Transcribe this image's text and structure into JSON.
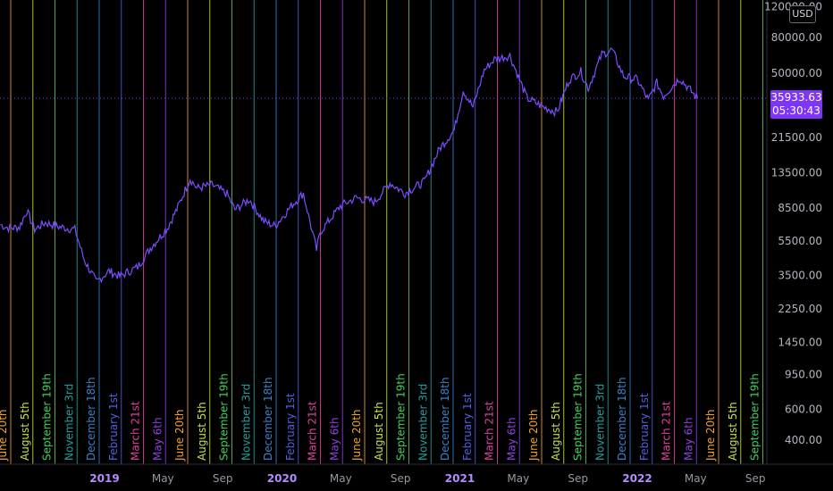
{
  "currency": "USD",
  "last_price": {
    "value": "35933.63",
    "countdown": "05:30:43"
  },
  "chart_data": {
    "type": "line",
    "yscale": "log",
    "ylim": [
      370,
      120000
    ],
    "price_ticks": [
      "120000.00",
      "80000.00",
      "50000.00",
      "21500.00",
      "13500.00",
      "8500.00",
      "5500.00",
      "3500.00",
      "2250.00",
      "1450.00",
      "950.00",
      "600.00",
      "400.00"
    ],
    "time_ticks": [
      {
        "label": "2019",
        "year": true
      },
      {
        "label": "May",
        "year": false
      },
      {
        "label": "Sep",
        "year": false
      },
      {
        "label": "2020",
        "year": true
      },
      {
        "label": "May",
        "year": false
      },
      {
        "label": "Sep",
        "year": false
      },
      {
        "label": "2021",
        "year": true
      },
      {
        "label": "May",
        "year": false
      },
      {
        "label": "Sep",
        "year": false
      },
      {
        "label": "2022",
        "year": true
      },
      {
        "label": "May",
        "year": false
      },
      {
        "label": "Sep",
        "year": false
      }
    ],
    "cycle_lines": [
      {
        "label": "June 20th",
        "color": "#f0a030"
      },
      {
        "label": "August 5th",
        "color": "#c8e040"
      },
      {
        "label": "September 19th",
        "color": "#40d060"
      },
      {
        "label": "November 3rd",
        "color": "#20a0a0"
      },
      {
        "label": "December 18th",
        "color": "#3a80c8"
      },
      {
        "label": "February 1st",
        "color": "#5060e0"
      },
      {
        "label": "March 21st",
        "color": "#e040a0"
      },
      {
        "label": "May 6th",
        "color": "#9040e0"
      }
    ],
    "cycle_labels_shown": [
      "June 20th",
      "August 5th",
      "September 19th",
      "November 3rd",
      "December 18th",
      "February 1st",
      "March 21st",
      "May 6th",
      "June 20th",
      "August 5th",
      "September 19th",
      "November 3rd",
      "December 18th",
      "February 1st",
      "March 21st",
      "May 6th",
      "June 20th",
      "August 5th",
      "September 19th",
      "November 3rd",
      "December 18th",
      "February 1st",
      "March 21st",
      "May 6th",
      "June 20th",
      "August 5th",
      "September 19th",
      "November 3rd",
      "December 18th",
      "February 1st",
      "March 21st",
      "May 6th",
      "June 20th",
      "August 5th",
      "September 19th"
    ],
    "series": [
      {
        "color": "#7c4dff",
        "points": [
          [
            "2018-06-01",
            6800
          ],
          [
            "2018-06-20",
            6500
          ],
          [
            "2018-07-10",
            6600
          ],
          [
            "2018-07-25",
            8200
          ],
          [
            "2018-08-10",
            6400
          ],
          [
            "2018-09-01",
            7000
          ],
          [
            "2018-10-01",
            6600
          ],
          [
            "2018-11-01",
            6400
          ],
          [
            "2018-11-20",
            4300
          ],
          [
            "2018-12-15",
            3200
          ],
          [
            "2019-01-10",
            3700
          ],
          [
            "2019-02-01",
            3450
          ],
          [
            "2019-03-10",
            3900
          ],
          [
            "2019-04-05",
            5000
          ],
          [
            "2019-05-10",
            6500
          ],
          [
            "2019-06-01",
            8600
          ],
          [
            "2019-06-26",
            12500
          ],
          [
            "2019-07-10",
            11000
          ],
          [
            "2019-08-10",
            11500
          ],
          [
            "2019-09-10",
            10200
          ],
          [
            "2019-09-26",
            8300
          ],
          [
            "2019-10-26",
            9500
          ],
          [
            "2019-11-25",
            7100
          ],
          [
            "2019-12-18",
            6700
          ],
          [
            "2020-01-20",
            8700
          ],
          [
            "2020-02-14",
            10300
          ],
          [
            "2020-03-12",
            4900
          ],
          [
            "2020-03-20",
            6200
          ],
          [
            "2020-04-30",
            8700
          ],
          [
            "2020-06-01",
            9700
          ],
          [
            "2020-07-10",
            9200
          ],
          [
            "2020-08-10",
            11800
          ],
          [
            "2020-09-10",
            10300
          ],
          [
            "2020-10-20",
            12000
          ],
          [
            "2020-11-20",
            18500
          ],
          [
            "2020-12-20",
            23500
          ],
          [
            "2021-01-08",
            40000
          ],
          [
            "2021-01-28",
            32000
          ],
          [
            "2021-02-20",
            52000
          ],
          [
            "2021-03-13",
            60000
          ],
          [
            "2021-04-14",
            63000
          ],
          [
            "2021-05-19",
            36000
          ],
          [
            "2021-06-22",
            32000
          ],
          [
            "2021-07-20",
            30000
          ],
          [
            "2021-08-14",
            46000
          ],
          [
            "2021-09-07",
            51000
          ],
          [
            "2021-09-22",
            41000
          ],
          [
            "2021-10-20",
            64000
          ],
          [
            "2021-11-10",
            68000
          ],
          [
            "2021-12-04",
            48000
          ],
          [
            "2022-01-01",
            46000
          ],
          [
            "2022-01-24",
            35000
          ],
          [
            "2022-02-10",
            44000
          ],
          [
            "2022-02-24",
            37000
          ],
          [
            "2022-03-29",
            47000
          ],
          [
            "2022-04-20",
            40000
          ],
          [
            "2022-05-05",
            35933
          ]
        ]
      }
    ]
  }
}
